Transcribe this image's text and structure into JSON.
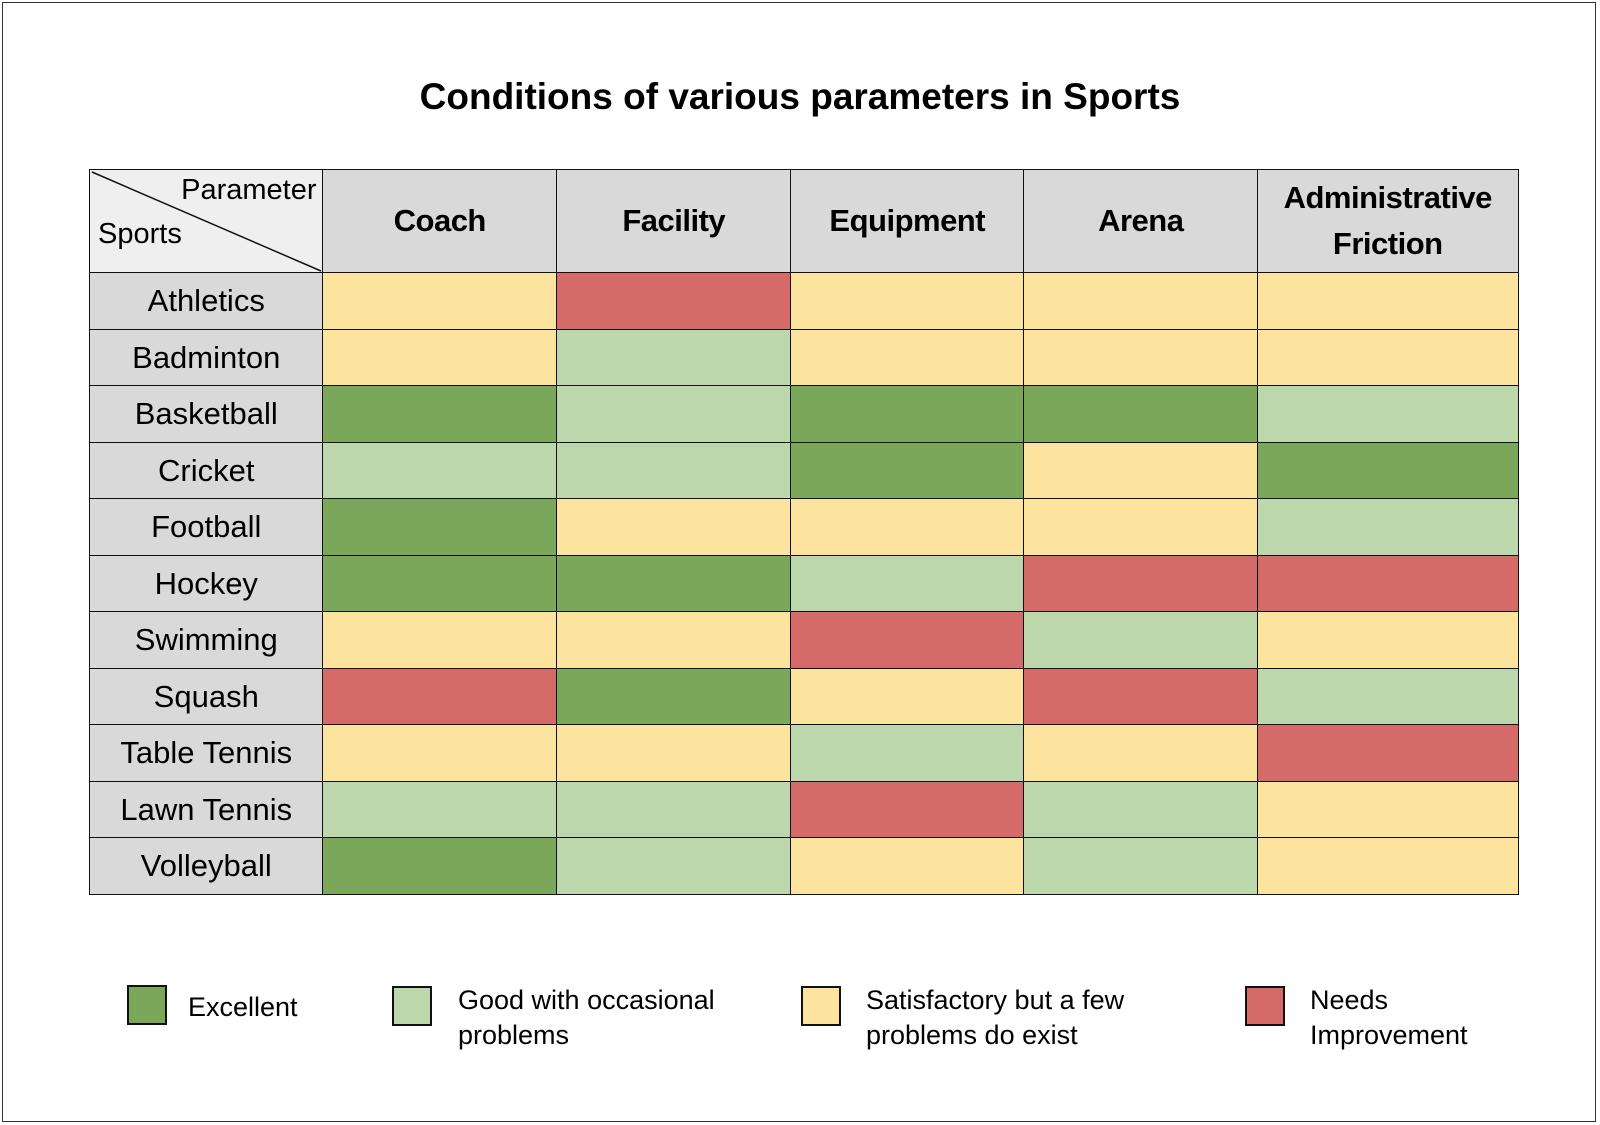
{
  "chart_data": {
    "type": "heatmap",
    "title": "Conditions of various parameters in Sports",
    "corner": {
      "column_axis": "Parameter",
      "row_axis": "Sports"
    },
    "columns": [
      "Coach",
      "Facility",
      "Equipment",
      "Arena",
      "Administrative Friction"
    ],
    "rows": [
      "Athletics",
      "Badminton",
      "Basketball",
      "Cricket",
      "Football",
      "Hockey",
      "Swimming",
      "Squash",
      "Table Tennis",
      "Lawn Tennis",
      "Volleyball"
    ],
    "levels": [
      {
        "key": "excellent",
        "label": "Excellent",
        "color": "#7aa75a"
      },
      {
        "key": "good",
        "label": "Good with occasional problems",
        "color": "#bdd7ad"
      },
      {
        "key": "satisfactory",
        "label": "Satisfactory but a few problems do exist",
        "color": "#fce49f"
      },
      {
        "key": "needs",
        "label": "Needs Improvement",
        "color": "#d46b68"
      }
    ],
    "values": [
      [
        "satisfactory",
        "needs",
        "satisfactory",
        "satisfactory",
        "satisfactory"
      ],
      [
        "satisfactory",
        "good",
        "satisfactory",
        "satisfactory",
        "satisfactory"
      ],
      [
        "excellent",
        "good",
        "excellent",
        "excellent",
        "good"
      ],
      [
        "good",
        "good",
        "excellent",
        "satisfactory",
        "excellent"
      ],
      [
        "excellent",
        "satisfactory",
        "satisfactory",
        "satisfactory",
        "good"
      ],
      [
        "excellent",
        "excellent",
        "good",
        "needs",
        "needs"
      ],
      [
        "satisfactory",
        "satisfactory",
        "needs",
        "good",
        "satisfactory"
      ],
      [
        "needs",
        "excellent",
        "satisfactory",
        "needs",
        "good"
      ],
      [
        "satisfactory",
        "satisfactory",
        "good",
        "satisfactory",
        "needs"
      ],
      [
        "good",
        "good",
        "needs",
        "good",
        "satisfactory"
      ],
      [
        "excellent",
        "good",
        "satisfactory",
        "good",
        "satisfactory"
      ]
    ],
    "legend": {
      "placement": "bottom",
      "entries": [
        {
          "key": "excellent",
          "label": "Excellent"
        },
        {
          "key": "good",
          "label": "Good with occasional problems"
        },
        {
          "key": "satisfactory",
          "label": "Satisfactory but a few problems do exist"
        },
        {
          "key": "needs",
          "label": "Needs Improvement"
        }
      ]
    }
  }
}
